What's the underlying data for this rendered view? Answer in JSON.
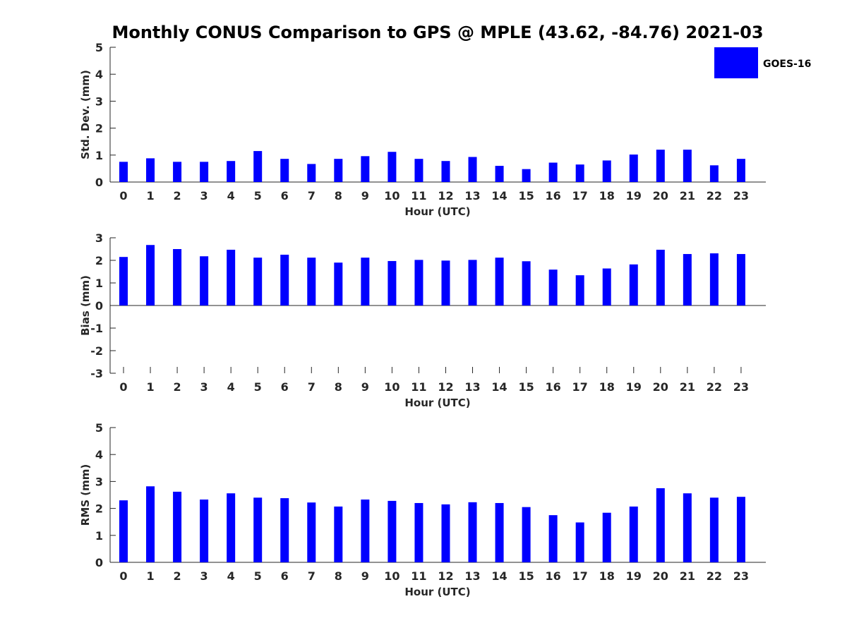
{
  "title": "Monthly CONUS Comparison to GPS @ MPLE (43.62, -84.76) 2021-03",
  "legend": {
    "label": "GOES-16",
    "color": "#0000ff",
    "placement": "top-right"
  },
  "chart_data": [
    {
      "type": "bar",
      "xlabel": "Hour (UTC)",
      "ylabel": "Std. Dev. (mm)",
      "ylim": [
        0,
        5
      ],
      "yticks": [
        0,
        1,
        2,
        3,
        4,
        5
      ],
      "categories": [
        0,
        1,
        2,
        3,
        4,
        5,
        6,
        7,
        8,
        9,
        10,
        11,
        12,
        13,
        14,
        15,
        16,
        17,
        18,
        19,
        20,
        21,
        22,
        23
      ],
      "series": [
        {
          "name": "GOES-16",
          "values": [
            0.75,
            0.88,
            0.75,
            0.75,
            0.78,
            1.15,
            0.86,
            0.67,
            0.86,
            0.96,
            1.12,
            0.86,
            0.78,
            0.93,
            0.6,
            0.48,
            0.72,
            0.65,
            0.8,
            1.02,
            1.2,
            1.2,
            0.62,
            0.86
          ]
        }
      ]
    },
    {
      "type": "bar",
      "xlabel": "Hour (UTC)",
      "ylabel": "Bias (mm)",
      "ylim": [
        -3,
        3
      ],
      "yticks": [
        -3,
        -2,
        -1,
        0,
        1,
        2,
        3
      ],
      "categories": [
        0,
        1,
        2,
        3,
        4,
        5,
        6,
        7,
        8,
        9,
        10,
        11,
        12,
        13,
        14,
        15,
        16,
        17,
        18,
        19,
        20,
        21,
        22,
        23
      ],
      "series": [
        {
          "name": "GOES-16",
          "values": [
            2.15,
            2.68,
            2.5,
            2.18,
            2.47,
            2.12,
            2.25,
            2.12,
            1.9,
            2.12,
            1.97,
            2.02,
            1.99,
            2.02,
            2.12,
            1.96,
            1.59,
            1.34,
            1.64,
            1.82,
            2.47,
            2.28,
            2.31,
            2.28
          ]
        }
      ]
    },
    {
      "type": "bar",
      "xlabel": "Hour (UTC)",
      "ylabel": "RMS (mm)",
      "ylim": [
        0,
        5
      ],
      "yticks": [
        0,
        1,
        2,
        3,
        4,
        5
      ],
      "categories": [
        0,
        1,
        2,
        3,
        4,
        5,
        6,
        7,
        8,
        9,
        10,
        11,
        12,
        13,
        14,
        15,
        16,
        17,
        18,
        19,
        20,
        21,
        22,
        23
      ],
      "series": [
        {
          "name": "GOES-16",
          "values": [
            2.3,
            2.82,
            2.62,
            2.33,
            2.56,
            2.4,
            2.38,
            2.22,
            2.07,
            2.33,
            2.28,
            2.2,
            2.15,
            2.23,
            2.2,
            2.05,
            1.75,
            1.48,
            1.84,
            2.07,
            2.75,
            2.56,
            2.4,
            2.43
          ]
        }
      ]
    }
  ]
}
